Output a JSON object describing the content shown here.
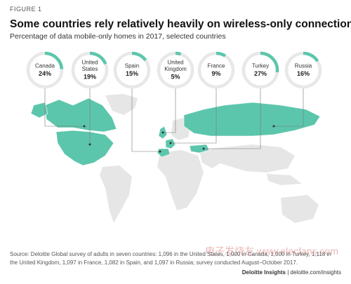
{
  "figure_label": "FIGURE 1",
  "title": "Some countries rely relatively heavily on wireless-only connections",
  "subtitle": "Percentage of data mobile-only homes in 2017, selected countries",
  "chart_data": {
    "type": "donut",
    "unit": "%",
    "max": 100,
    "countries": [
      {
        "name": "Canada",
        "label_lines": [
          "Canada"
        ],
        "value": 24,
        "value_label": "24%"
      },
      {
        "name": "United States",
        "label_lines": [
          "United",
          "States"
        ],
        "value": 19,
        "value_label": "19%"
      },
      {
        "name": "Spain",
        "label_lines": [
          "Spain"
        ],
        "value": 15,
        "value_label": "15%"
      },
      {
        "name": "United Kingdom",
        "label_lines": [
          "United",
          "Kingdom"
        ],
        "value": 5,
        "value_label": "5%"
      },
      {
        "name": "France",
        "label_lines": [
          "France"
        ],
        "value": 9,
        "value_label": "9%"
      },
      {
        "name": "Turkey",
        "label_lines": [
          "Turkey"
        ],
        "value": 27,
        "value_label": "27%"
      },
      {
        "name": "Russia",
        "label_lines": [
          "Russia"
        ],
        "value": 16,
        "value_label": "16%"
      }
    ]
  },
  "colors": {
    "accent": "#5cc6ac",
    "ring_track": "#e8e8e8",
    "land": "#e6e6e6",
    "leader": "#777777"
  },
  "source": "Source: Deloitte Global survey of adults in seven countries: 1,096 in the United States, 1,000 in Canada, 1,000 in Turkey, 1,118 in the United Kingdom, 1,097 in France, 1,082 in Spain, and 1,097 in Russia; survey conducted August–October 2017.",
  "brand": {
    "name": "Deloitte Insights",
    "separator": " | ",
    "url": "deloitte.com/insights"
  },
  "watermark": "电子发烧友 www.elecfans.com"
}
